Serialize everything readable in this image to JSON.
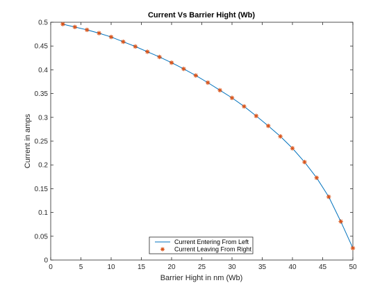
{
  "chart_data": {
    "type": "line",
    "title": "Current Vs Barrier Hight (Wb)",
    "xlabel": "Barrier Hight in nm (Wb)",
    "ylabel": "Current in amps",
    "xlim": [
      0,
      50
    ],
    "ylim": [
      0,
      0.5
    ],
    "xticks": [
      0,
      5,
      10,
      15,
      20,
      25,
      30,
      35,
      40,
      45,
      50
    ],
    "yticks": [
      0,
      0.05,
      0.1,
      0.15,
      0.2,
      0.25,
      0.3,
      0.35,
      0.4,
      0.45,
      0.5
    ],
    "xtick_labels": [
      "0",
      "5",
      "10",
      "15",
      "20",
      "25",
      "30",
      "35",
      "40",
      "45",
      "50"
    ],
    "ytick_labels": [
      "0",
      "0.05",
      "0.1",
      "0.15",
      "0.2",
      "0.25",
      "0.3",
      "0.35",
      "0.4",
      "0.45",
      "0.5"
    ],
    "grid": false,
    "legend_position": "bottom-center",
    "x": [
      2,
      4,
      6,
      8,
      10,
      12,
      14,
      16,
      18,
      20,
      22,
      24,
      26,
      28,
      30,
      32,
      34,
      36,
      38,
      40,
      42,
      44,
      46,
      48,
      50
    ],
    "series": [
      {
        "name": "Current Entering From Left",
        "style": "line",
        "color": "#0072BD",
        "values": [
          0.496,
          0.49,
          0.484,
          0.477,
          0.469,
          0.459,
          0.449,
          0.438,
          0.427,
          0.415,
          0.402,
          0.388,
          0.373,
          0.357,
          0.341,
          0.323,
          0.303,
          0.282,
          0.26,
          0.235,
          0.206,
          0.173,
          0.133,
          0.081,
          0.025
        ]
      },
      {
        "name": "Current Leaving From Right",
        "style": "marker",
        "marker": "asterisk",
        "color": "#D95319",
        "values": [
          0.496,
          0.49,
          0.484,
          0.477,
          0.469,
          0.459,
          0.449,
          0.438,
          0.427,
          0.415,
          0.402,
          0.388,
          0.373,
          0.357,
          0.341,
          0.323,
          0.303,
          0.282,
          0.26,
          0.235,
          0.206,
          0.173,
          0.133,
          0.081,
          0.025
        ]
      }
    ]
  }
}
